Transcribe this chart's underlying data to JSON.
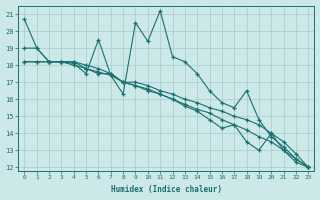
{
  "xlabel": "Humidex (Indice chaleur)",
  "xlim": [
    -0.5,
    23.5
  ],
  "ylim": [
    11.8,
    21.5
  ],
  "yticks": [
    12,
    13,
    14,
    15,
    16,
    17,
    18,
    19,
    20,
    21
  ],
  "xticks": [
    0,
    1,
    2,
    3,
    4,
    5,
    6,
    7,
    8,
    9,
    10,
    11,
    12,
    13,
    14,
    15,
    16,
    17,
    18,
    19,
    20,
    21,
    22,
    23
  ],
  "bg_color": "#cce8e8",
  "grid_color": "#a8cccc",
  "line_color": "#1a7070",
  "lines": [
    {
      "x": [
        0,
        1,
        2,
        3,
        4,
        5,
        6,
        7,
        8,
        9,
        10,
        11,
        12,
        13,
        14,
        15,
        16,
        17,
        18,
        19,
        20,
        21,
        22,
        23
      ],
      "y": [
        20.7,
        19.0,
        18.2,
        18.2,
        18.1,
        17.5,
        19.5,
        17.4,
        16.3,
        20.5,
        19.4,
        21.2,
        18.5,
        18.2,
        17.5,
        16.5,
        15.8,
        15.5,
        16.5,
        14.8,
        13.8,
        13.2,
        12.5,
        12.0
      ]
    },
    {
      "x": [
        0,
        1,
        2,
        3,
        4,
        5,
        6,
        7,
        8,
        9,
        10,
        11,
        12,
        13,
        14,
        15,
        16,
        17,
        18,
        19,
        20,
        21,
        22,
        23
      ],
      "y": [
        19.0,
        19.0,
        18.2,
        18.2,
        18.2,
        17.8,
        17.5,
        17.5,
        17.0,
        17.0,
        16.8,
        16.5,
        16.3,
        16.0,
        15.8,
        15.5,
        15.3,
        15.0,
        14.8,
        14.5,
        14.0,
        13.5,
        12.8,
        12.0
      ]
    },
    {
      "x": [
        0,
        1,
        2,
        3,
        4,
        5,
        6,
        7,
        8,
        9,
        10,
        11,
        12,
        13,
        14,
        15,
        16,
        17,
        18,
        19,
        20,
        21,
        22,
        23
      ],
      "y": [
        18.2,
        18.2,
        18.2,
        18.2,
        18.0,
        17.8,
        17.6,
        17.4,
        17.0,
        16.8,
        16.5,
        16.3,
        16.0,
        15.7,
        15.4,
        15.2,
        14.8,
        14.5,
        14.2,
        13.8,
        13.5,
        13.0,
        12.5,
        12.0
      ]
    },
    {
      "x": [
        0,
        1,
        2,
        3,
        4,
        5,
        6,
        7,
        8,
        9,
        10,
        11,
        12,
        13,
        14,
        15,
        16,
        17,
        18,
        19,
        20,
        21,
        22,
        23
      ],
      "y": [
        18.2,
        18.2,
        18.2,
        18.2,
        18.2,
        18.0,
        17.8,
        17.5,
        17.0,
        16.8,
        16.6,
        16.3,
        16.0,
        15.6,
        15.3,
        14.8,
        14.3,
        14.5,
        13.5,
        13.0,
        14.0,
        13.0,
        12.3,
        12.0
      ]
    }
  ]
}
